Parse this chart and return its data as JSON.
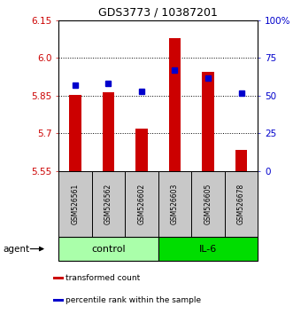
{
  "title": "GDS3773 / 10387201",
  "samples": [
    "GSM526561",
    "GSM526562",
    "GSM526602",
    "GSM526603",
    "GSM526605",
    "GSM526678"
  ],
  "red_values": [
    5.855,
    5.865,
    5.72,
    6.08,
    5.945,
    5.635
  ],
  "blue_percentiles": [
    57,
    58,
    53,
    67,
    62,
    52
  ],
  "y_min": 5.55,
  "y_max": 6.15,
  "y_ticks_left": [
    5.55,
    5.7,
    5.85,
    6.0,
    6.15
  ],
  "y_ticks_right": [
    0,
    25,
    50,
    75,
    100
  ],
  "y_ticks_right_labels": [
    "0",
    "25",
    "50",
    "75",
    "100%"
  ],
  "groups": [
    {
      "label": "control",
      "indices": [
        0,
        1,
        2
      ],
      "color": "#AAFFAA"
    },
    {
      "label": "IL-6",
      "indices": [
        3,
        4,
        5
      ],
      "color": "#00DD00"
    }
  ],
  "bar_color": "#CC0000",
  "dot_color": "#0000CC",
  "left_tick_color": "#CC0000",
  "right_tick_color": "#0000CC",
  "agent_label": "agent",
  "legend_items": [
    {
      "color": "#CC0000",
      "label": "transformed count"
    },
    {
      "color": "#0000CC",
      "label": "percentile rank within the sample"
    }
  ],
  "bar_width": 0.35
}
